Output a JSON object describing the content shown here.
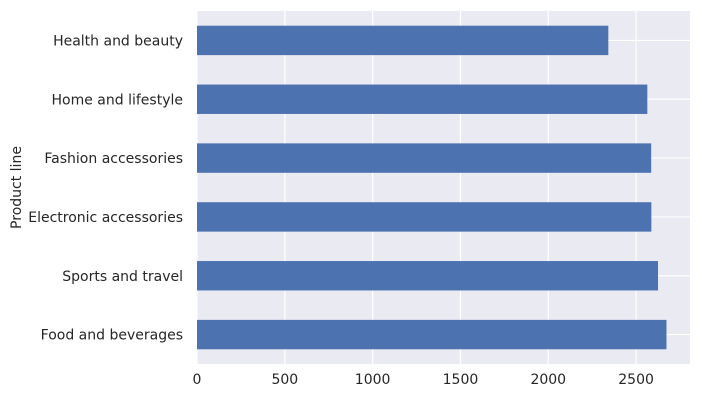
{
  "chart_data": {
    "type": "bar",
    "orientation": "horizontal",
    "title": "",
    "xlabel": "",
    "ylabel": "Product line",
    "categories": [
      "Food and beverages",
      "Sports and travel",
      "Electronic accessories",
      "Fashion accessories",
      "Home and lifestyle",
      "Health and beauty"
    ],
    "values": [
      2673,
      2625,
      2587,
      2586,
      2564,
      2342
    ],
    "xlim": [
      0,
      2807
    ],
    "xticks": [
      0,
      500,
      1000,
      1500,
      2000,
      2500
    ],
    "grid": true,
    "legend": "none",
    "colors": {
      "bar": "#4c72b0",
      "plot_background": "#eaeaf2",
      "grid": "#ffffff",
      "text": "#262626"
    }
  }
}
